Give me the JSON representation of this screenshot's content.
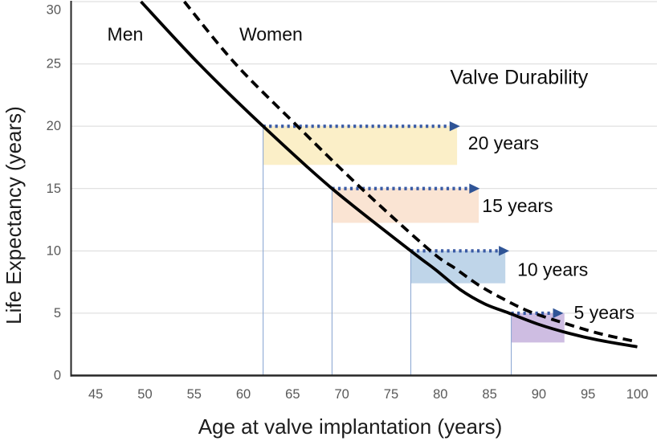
{
  "figure": {
    "background": "#ffffff",
    "colors": {
      "gridline": "#d9d9d9",
      "axis": "#262626",
      "tick_text": "#595959",
      "curve": "#000000",
      "arrow_dots": "#3a5ba5",
      "arrow_head": "#2f5496",
      "guide_line": "#8faad4"
    }
  },
  "chart_data": {
    "type": "line",
    "title": "",
    "xlabel": "Age at valve implantation (years)",
    "ylabel": "Life Expectancy (years)",
    "xlim": [
      42.5,
      102
    ],
    "ylim": [
      0,
      30
    ],
    "xticks": [
      45,
      50,
      55,
      60,
      65,
      70,
      75,
      80,
      85,
      90,
      95,
      100
    ],
    "yticks": [
      0,
      5,
      10,
      15,
      20,
      25,
      30
    ],
    "grid": "horizontal-only",
    "legend_position": "inline-labels",
    "series": [
      {
        "name": "Men",
        "line": "solid",
        "color": "#000000",
        "label_pos": [
          48.0,
          27.4
        ],
        "points": [
          [
            49.6,
            30
          ],
          [
            55.5,
            25
          ],
          [
            62,
            20
          ],
          [
            69,
            15
          ],
          [
            77,
            10
          ],
          [
            79.5,
            8.5
          ],
          [
            82,
            6.9
          ],
          [
            84.5,
            5.75
          ],
          [
            87,
            5.0
          ],
          [
            90,
            4.1
          ],
          [
            93,
            3.4
          ],
          [
            96,
            2.85
          ],
          [
            100,
            2.3
          ]
        ]
      },
      {
        "name": "Women",
        "line": "dashed",
        "color": "#000000",
        "label_pos": [
          62.8,
          27.4
        ],
        "points": [
          [
            54,
            30
          ],
          [
            59.2,
            25
          ],
          [
            65.5,
            20
          ],
          [
            72,
            15
          ],
          [
            79,
            10
          ],
          [
            81.5,
            8.6
          ],
          [
            84,
            7.2
          ],
          [
            86.5,
            6.1
          ],
          [
            89,
            5.15
          ],
          [
            92,
            4.35
          ],
          [
            96,
            3.4
          ],
          [
            100,
            2.7
          ]
        ]
      }
    ],
    "annotation_title": {
      "text": "Valve Durability",
      "pos": [
        88.0,
        23.9
      ]
    },
    "durability_arrows": [
      {
        "label": "20 years",
        "level": 20,
        "start_age": 62,
        "end_age": 82,
        "band_right": 81.7,
        "band_bottom": 16.9,
        "band_color": "#fbefc8",
        "label_offset": [
          10,
          21
        ]
      },
      {
        "label": "15 years",
        "level": 15,
        "start_age": 69,
        "end_age": 84,
        "band_right": 83.9,
        "band_bottom": 12.25,
        "band_color": "#fae4d3",
        "label_offset": [
          3,
          21
        ]
      },
      {
        "label": "10 years",
        "level": 10,
        "start_age": 77,
        "end_age": 87,
        "band_right": 86.6,
        "band_bottom": 7.4,
        "band_color": "#bfd5e9",
        "label_offset": [
          10,
          23
        ]
      },
      {
        "label": "5 years",
        "level": 5,
        "start_age": 87.2,
        "end_age": 92.5,
        "band_right": 92.6,
        "band_bottom": 2.65,
        "band_color": "#cebde2",
        "label_offset": [
          13,
          -1
        ]
      }
    ]
  }
}
